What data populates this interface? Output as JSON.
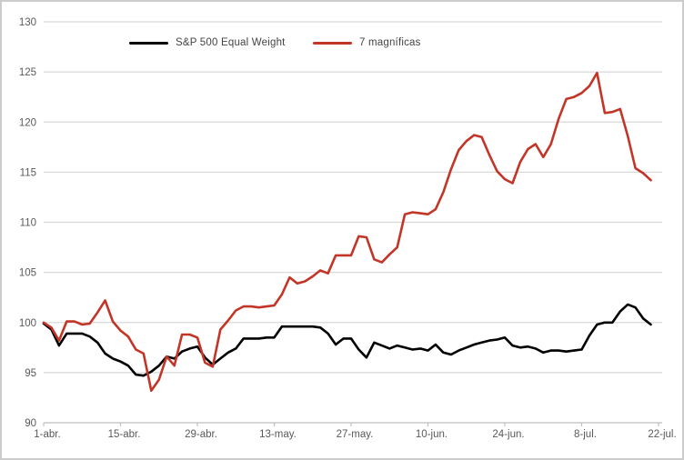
{
  "chart_data": {
    "type": "line",
    "title": "",
    "xlabel": "",
    "ylabel": "",
    "ylim": [
      90,
      130
    ],
    "y_ticks": [
      90,
      95,
      100,
      105,
      110,
      115,
      120,
      125,
      130
    ],
    "grid": "horizontal",
    "legend_position": "top",
    "x_tick_labels": [
      "1-abr.",
      "15-abr.",
      "29-abr.",
      "13-may.",
      "27-may.",
      "10-jun.",
      "24-jun.",
      "8-jul.",
      "22-jul."
    ],
    "x_tick_every": 10,
    "x": [
      "1-abr",
      "2-abr",
      "3-abr",
      "4-abr",
      "5-abr",
      "8-abr",
      "9-abr",
      "10-abr",
      "11-abr",
      "12-abr",
      "15-abr",
      "16-abr",
      "17-abr",
      "18-abr",
      "19-abr",
      "22-abr",
      "23-abr",
      "24-abr",
      "25-abr",
      "26-abr",
      "29-abr",
      "30-abr",
      "1-may",
      "2-may",
      "3-may",
      "6-may",
      "7-may",
      "8-may",
      "9-may",
      "10-may",
      "13-may",
      "14-may",
      "15-may",
      "16-may",
      "17-may",
      "20-may",
      "21-may",
      "22-may",
      "23-may",
      "24-may",
      "27-may",
      "28-may",
      "29-may",
      "30-may",
      "31-may",
      "3-jun",
      "4-jun",
      "5-jun",
      "6-jun",
      "7-jun",
      "10-jun",
      "11-jun",
      "12-jun",
      "13-jun",
      "14-jun",
      "17-jun",
      "18-jun",
      "19-jun",
      "20-jun",
      "21-jun",
      "24-jun",
      "25-jun",
      "26-jun",
      "27-jun",
      "28-jun",
      "1-jul",
      "2-jul",
      "3-jul",
      "4-jul",
      "5-jul",
      "8-jul",
      "9-jul",
      "10-jul",
      "11-jul",
      "12-jul",
      "15-jul",
      "16-jul",
      "17-jul",
      "18-jul",
      "19-jul"
    ],
    "series": [
      {
        "name": "S&P 500 Equal Weight",
        "color": "#000000",
        "values": [
          99.9,
          99.3,
          97.7,
          98.9,
          98.9,
          98.9,
          98.6,
          98.0,
          96.9,
          96.4,
          96.1,
          95.7,
          94.8,
          94.7,
          95.1,
          95.7,
          96.6,
          96.4,
          97.1,
          97.4,
          97.6,
          96.5,
          95.8,
          96.4,
          97.0,
          97.4,
          98.4,
          98.4,
          98.4,
          98.5,
          98.5,
          99.6,
          99.6,
          99.6,
          99.6,
          99.6,
          99.5,
          98.9,
          97.8,
          98.4,
          98.4,
          97.3,
          96.5,
          98.0,
          97.7,
          97.4,
          97.7,
          97.5,
          97.3,
          97.4,
          97.2,
          97.8,
          97.0,
          96.8,
          97.2,
          97.5,
          97.8,
          98.0,
          98.2,
          98.3,
          98.5,
          97.7,
          97.5,
          97.6,
          97.4,
          97.0,
          97.2,
          97.2,
          97.1,
          97.2,
          97.3,
          98.7,
          99.8,
          100.0,
          100.0,
          101.1,
          101.8,
          101.5,
          100.4,
          99.8
        ]
      },
      {
        "name": "7 magníficas",
        "color": "#C23527",
        "values": [
          100.0,
          99.5,
          98.2,
          100.1,
          100.1,
          99.8,
          99.9,
          101.0,
          102.2,
          100.1,
          99.2,
          98.6,
          97.3,
          96.9,
          93.2,
          94.3,
          96.6,
          95.7,
          98.8,
          98.8,
          98.5,
          96.0,
          95.6,
          99.3,
          100.2,
          101.2,
          101.6,
          101.6,
          101.5,
          101.6,
          101.7,
          102.8,
          104.5,
          103.9,
          104.1,
          104.6,
          105.2,
          104.9,
          106.7,
          106.7,
          106.7,
          108.6,
          108.5,
          106.3,
          106.0,
          106.8,
          107.5,
          110.8,
          111.0,
          110.9,
          110.8,
          111.3,
          113.0,
          115.3,
          117.2,
          118.1,
          118.7,
          118.5,
          116.7,
          115.1,
          114.3,
          113.9,
          116.0,
          117.3,
          117.8,
          116.5,
          117.8,
          120.3,
          122.3,
          122.5,
          122.9,
          123.6,
          124.9,
          120.9,
          121.0,
          121.3,
          118.6,
          115.4,
          114.9,
          114.2
        ]
      }
    ],
    "colors": {
      "grid": "#D9D9D9",
      "axis": "#BFBFBF",
      "tick_text": "#595959",
      "frame_border": "#CCCCCC",
      "background": "#FFFFFF"
    }
  }
}
